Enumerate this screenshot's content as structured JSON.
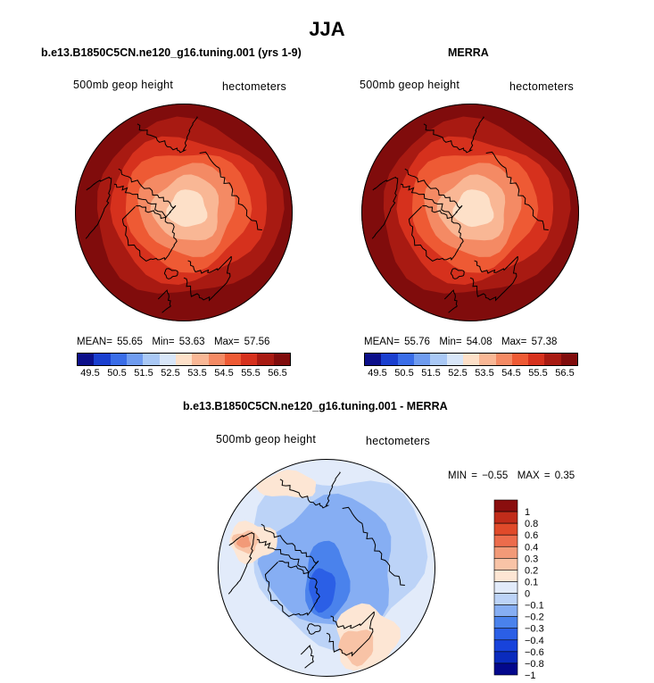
{
  "figure": {
    "season": "JJA"
  },
  "colors": {
    "abs_scale": [
      "#0c0f8a",
      "#1a3fcf",
      "#3a6de8",
      "#6f9cf0",
      "#a9c8f5",
      "#d8e6f8",
      "#fde0c8",
      "#f9b795",
      "#f48a64",
      "#ee5a34",
      "#d6311d",
      "#a81a12",
      "#800c0c"
    ],
    "diff_scale": [
      "#03088c",
      "#0a2bbd",
      "#1843db",
      "#2b5fe6",
      "#4a82ec",
      "#86aef3",
      "#bcd3f7",
      "#e2ebfa",
      "#fde6d4",
      "#f8c3a6",
      "#f29a78",
      "#ec6c4c",
      "#e04a2a",
      "#c12c1a",
      "#8a0e0e"
    ],
    "coastline": "#000000"
  },
  "panels": {
    "left": {
      "title": "b.e13.B1850C5CN.ne120_g16.tuning.001 (yrs 1-9)",
      "var_label": "500mb geop height",
      "units_label": "hectometers",
      "mean_label": "MEAN=",
      "mean_value": "55.65",
      "min_label": "Min=",
      "min_value": "53.63",
      "max_label": "Max=",
      "max_value": "57.56"
    },
    "right": {
      "title": "MERRA",
      "var_label": "500mb geop height",
      "units_label": "hectometers",
      "mean_label": "MEAN=",
      "mean_value": "55.76",
      "min_label": "Min=",
      "min_value": "54.08",
      "max_label": "Max=",
      "max_value": "57.38"
    },
    "diff": {
      "title": "b.e13.B1850C5CN.ne120_g16.tuning.001 - MERRA",
      "var_label": "500mb geop height",
      "units_label": "hectometers",
      "min_label": "MIN =",
      "min_value": "−0.55",
      "max_label": "MAX =",
      "max_value": "0.35"
    }
  },
  "chart_data": [
    {
      "type": "heatmap",
      "projection": "north polar stereographic",
      "title": "b.e13.B1850C5CN.ne120_g16.tuning.001 (yrs 1-9)",
      "variable": "500mb geop height",
      "units": "hectometers",
      "mean": 55.65,
      "min": 53.63,
      "max": 57.56,
      "contour_levels": [
        49.5,
        50.0,
        50.5,
        51.0,
        51.5,
        52.0,
        52.5,
        53.0,
        53.5,
        54.0,
        54.5,
        55.0,
        55.5,
        56.0,
        56.5
      ],
      "tick_labels": [
        "49.5",
        "50.5",
        "51.5",
        "52.5",
        "53.5",
        "54.5",
        "55.5",
        "56.5"
      ]
    },
    {
      "type": "heatmap",
      "projection": "north polar stereographic",
      "title": "MERRA",
      "variable": "500mb geop height",
      "units": "hectometers",
      "mean": 55.76,
      "min": 54.08,
      "max": 57.38,
      "contour_levels": [
        49.5,
        50.0,
        50.5,
        51.0,
        51.5,
        52.0,
        52.5,
        53.0,
        53.5,
        54.0,
        54.5,
        55.0,
        55.5,
        56.0,
        56.5
      ],
      "tick_labels": [
        "49.5",
        "50.5",
        "51.5",
        "52.5",
        "53.5",
        "54.5",
        "55.5",
        "56.5"
      ]
    },
    {
      "type": "heatmap",
      "projection": "north polar stereographic",
      "title": "b.e13.B1850C5CN.ne120_g16.tuning.001 - MERRA",
      "variable": "500mb geop height",
      "units": "hectometers",
      "min": -0.55,
      "max": 0.35,
      "contour_levels": [
        -1,
        -0.8,
        -0.6,
        -0.4,
        -0.3,
        -0.2,
        -0.1,
        0,
        0.1,
        0.2,
        0.3,
        0.4,
        0.6,
        0.8,
        1
      ],
      "tick_labels": [
        "1",
        "0.8",
        "0.6",
        "0.4",
        "0.3",
        "0.2",
        "0.1",
        "0",
        "−0.1",
        "−0.2",
        "−0.3",
        "−0.4",
        "−0.6",
        "−0.8",
        "−1"
      ]
    }
  ]
}
